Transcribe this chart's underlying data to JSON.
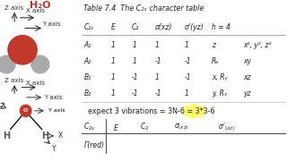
{
  "title_h2o": "H₂O",
  "table_title": "Table 7.4  The C₂ᵥ character table",
  "bg_color": "#d6eaf8",
  "table_bg": "#cde6f5",
  "white_bg": "#ffffff",
  "header_row": [
    "C₂ᵥ",
    "E",
    "C₂",
    "σ(xz)",
    "σ’(yz)",
    "h = 4",
    ""
  ],
  "rows": [
    [
      "A₁",
      "1",
      "1",
      "1",
      "1",
      "z",
      "x², y², z²"
    ],
    [
      "A₂",
      "1",
      "1",
      "-1",
      "-1",
      "Rₔ",
      "xy"
    ],
    [
      "B₁",
      "1",
      "-1",
      "1",
      "-1",
      "x, Rᵧ",
      "xz"
    ],
    [
      "B₂",
      "1",
      "-1",
      "-1",
      "1",
      "y, Rₓ",
      "yz"
    ]
  ],
  "expect_text": "expect 3 vibrations = 3N-6 = 3*3-6",
  "highlight_color": "#ffff66",
  "bottom_row_label": "Γ(red)",
  "o_color": "#c0392b",
  "h_color": "#aaaaaa"
}
